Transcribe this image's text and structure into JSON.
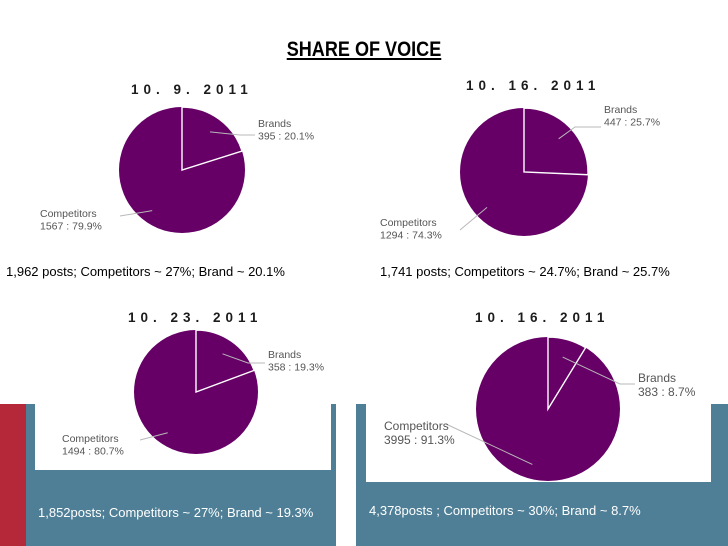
{
  "title": "SHARE OF VOICE",
  "colors": {
    "slice": "#660066",
    "leader": "#b8b8b8",
    "label": "#555555",
    "accent_red": "#b5283a",
    "accent_blue": "#4f7f96"
  },
  "chart_data": [
    {
      "type": "pie",
      "title": "10. 9. 2011",
      "labels": [
        "Brands",
        "Competitors"
      ],
      "values": [
        395,
        1567
      ],
      "value_labels": [
        "395 : 20.1%",
        "1567 : 79.9%"
      ],
      "percents": [
        20.1,
        79.9
      ],
      "caption": "1,962 posts; Competitors ~ 27%; Brand ~ 20.1%"
    },
    {
      "type": "pie",
      "title": "10. 16. 2011",
      "labels": [
        "Brands",
        "Competitors"
      ],
      "values": [
        447,
        1294
      ],
      "value_labels": [
        "447 : 25.7%",
        "1294 : 74.3%"
      ],
      "percents": [
        25.7,
        74.3
      ],
      "caption": "1,741 posts; Competitors ~ 24.7%; Brand ~ 25.7%"
    },
    {
      "type": "pie",
      "title": "10. 23. 2011",
      "labels": [
        "Brands",
        "Competitors"
      ],
      "values": [
        358,
        1494
      ],
      "value_labels": [
        "358 : 19.3%",
        "1494 : 80.7%"
      ],
      "percents": [
        19.3,
        80.7
      ],
      "caption": "1,852posts; Competitors ~ 27%; Brand ~ 19.3%"
    },
    {
      "type": "pie",
      "title": "10. 16. 2011",
      "labels": [
        "Brands",
        "Competitors"
      ],
      "values": [
        383,
        3995
      ],
      "value_labels": [
        "383 : 8.7%",
        "3995 : 91.3%"
      ],
      "percents": [
        8.7,
        91.3
      ],
      "caption": "4,378posts ; Competitors ~ 30%; Brand ~ 8.7%"
    }
  ]
}
